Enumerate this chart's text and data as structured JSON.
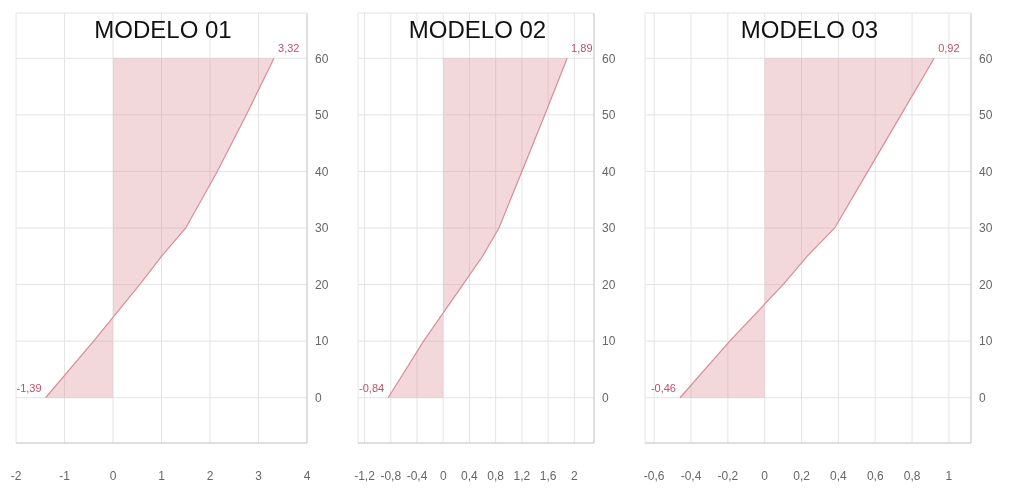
{
  "chart_data": [
    {
      "type": "area",
      "orientation": "horizontal",
      "title": "MODELO 01",
      "x": [
        0,
        10,
        20,
        25,
        30,
        40,
        50,
        60
      ],
      "series": [
        {
          "color": "#d98c99",
          "values": [
            -1.39,
            -0.4,
            0.55,
            1.0,
            1.5,
            2.15,
            2.75,
            3.32
          ],
          "value_labels": [
            "-1,39",
            null,
            null,
            null,
            null,
            null,
            null,
            "3,32"
          ]
        }
      ],
      "xlim": [
        -2,
        4
      ],
      "xticks": [
        -2,
        -1,
        0,
        1,
        2,
        3,
        4
      ],
      "ylim": [
        -8,
        68
      ],
      "yticks": [
        0,
        10,
        20,
        30,
        40,
        50,
        60
      ],
      "grid": true,
      "legend": false
    },
    {
      "type": "area",
      "orientation": "horizontal",
      "title": "MODELO 02",
      "x": [
        0,
        10,
        20,
        25,
        30,
        40,
        50,
        60
      ],
      "series": [
        {
          "color": "#d98c99",
          "values": [
            -0.84,
            -0.3,
            0.3,
            0.6,
            0.85,
            1.2,
            1.55,
            1.89
          ],
          "value_labels": [
            "-0,84",
            null,
            null,
            null,
            null,
            null,
            null,
            "1,89"
          ]
        }
      ],
      "xlim": [
        -1.3,
        2.3
      ],
      "xticks": [
        {
          "value": -1.2,
          "label": "-1,2"
        },
        {
          "value": -0.8,
          "label": "-0,8"
        },
        {
          "value": -0.4,
          "label": "-0,4"
        },
        0,
        {
          "value": 0.4,
          "label": "0,4"
        },
        {
          "value": 0.8,
          "label": "0,8"
        },
        {
          "value": 1.2,
          "label": "1,2"
        },
        {
          "value": 1.6,
          "label": "1,6"
        },
        2
      ],
      "ylim": [
        -8,
        68
      ],
      "yticks": [
        0,
        10,
        20,
        30,
        40,
        50,
        60
      ],
      "grid": true,
      "legend": false
    },
    {
      "type": "area",
      "orientation": "horizontal",
      "title": "MODELO 03",
      "x": [
        0,
        10,
        20,
        25,
        30,
        40,
        50,
        60
      ],
      "series": [
        {
          "color": "#d98c99",
          "values": [
            -0.46,
            -0.19,
            0.1,
            0.23,
            0.38,
            0.56,
            0.74,
            0.92
          ],
          "value_labels": [
            "-0,46",
            null,
            null,
            null,
            null,
            null,
            null,
            "0,92"
          ]
        }
      ],
      "xlim": [
        -0.65,
        1.12
      ],
      "xticks": [
        {
          "value": -0.6,
          "label": "-0,6"
        },
        {
          "value": -0.4,
          "label": "-0,4"
        },
        {
          "value": -0.2,
          "label": "-0,2"
        },
        0,
        {
          "value": 0.2,
          "label": "0,2"
        },
        {
          "value": 0.4,
          "label": "0,4"
        },
        {
          "value": 0.6,
          "label": "0,6"
        },
        {
          "value": 0.8,
          "label": "0,8"
        },
        1
      ],
      "ylim": [
        -8,
        68
      ],
      "yticks": [
        0,
        10,
        20,
        30,
        40,
        50,
        60
      ],
      "grid": true,
      "legend": false
    }
  ]
}
